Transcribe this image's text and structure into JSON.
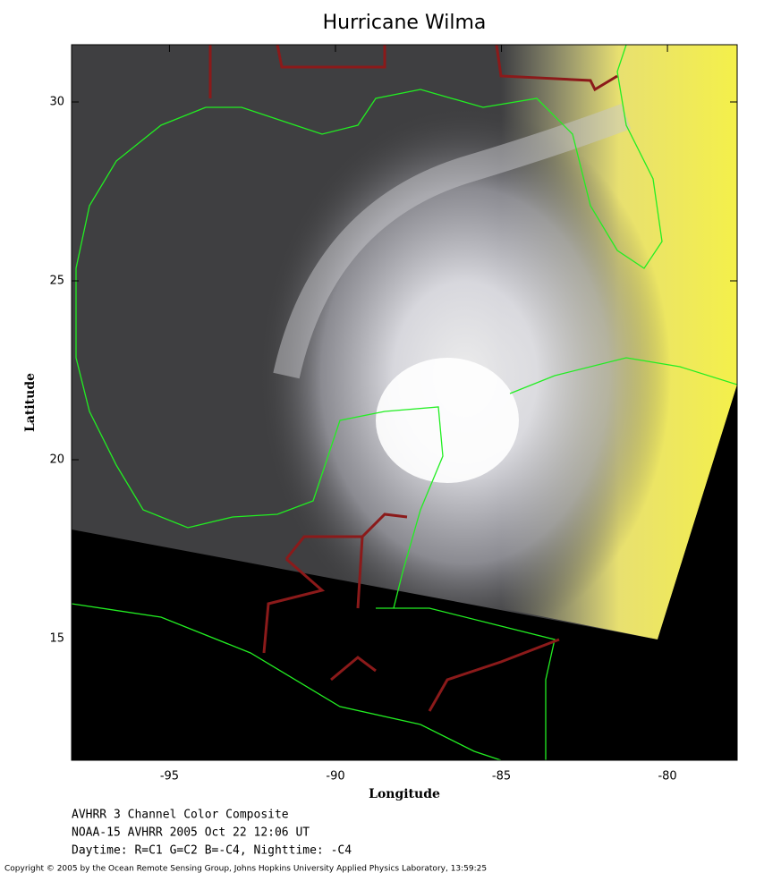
{
  "map": {
    "title": "Hurricane Wilma",
    "xlabel": "Longitude",
    "ylabel": "Latitude",
    "xlim": [
      -97.95,
      -77.9
    ],
    "ylim": [
      11.6,
      31.6
    ],
    "xticks": [
      -95,
      -90,
      -85,
      -80
    ],
    "yticks": [
      15,
      20,
      25,
      30
    ]
  },
  "caption": [
    "AVHRR 3 Channel Color Composite",
    "NOAA-15 AVHRR 2005 Oct 22 12:06 UT",
    "Daytime: R=C1 G=C2 B=-C4, Nighttime: -C4"
  ],
  "copyright": "Copyright © 2005 by the Ocean Remote Sensing Group, Johns Hopkins University Applied Physics Laboratory, 13:59:25"
}
